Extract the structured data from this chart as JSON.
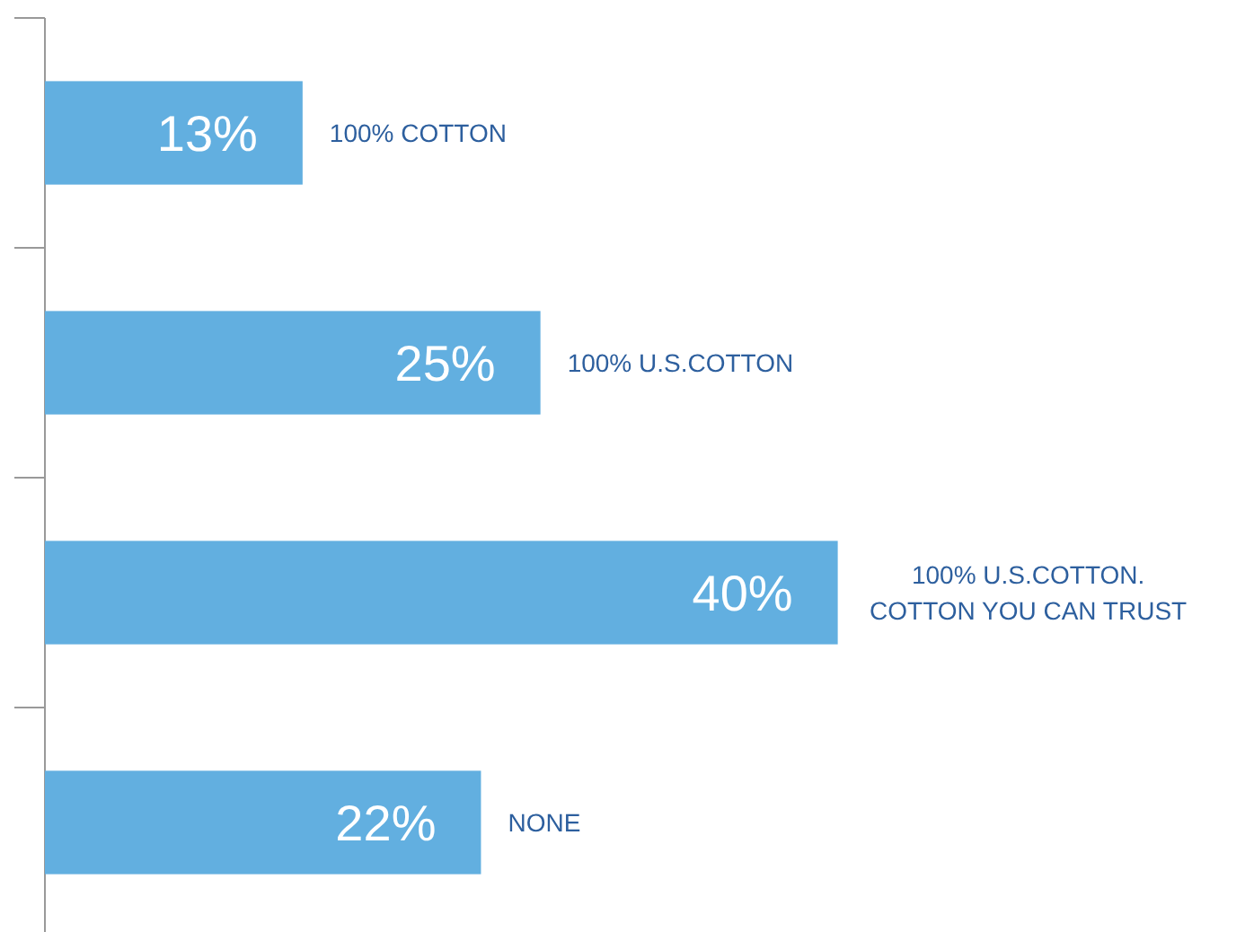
{
  "chart_data": {
    "type": "bar",
    "orientation": "horizontal",
    "categories": [
      "100% COTTON",
      "100% U.S.COTTON",
      "100% U.S.COTTON. COTTON YOU CAN TRUST",
      "NONE"
    ],
    "values": [
      13,
      25,
      40,
      22
    ],
    "value_labels": [
      "13%",
      "25%",
      "40%",
      "22%"
    ],
    "color": "#62afe0",
    "xlim": [
      0,
      61
    ]
  }
}
